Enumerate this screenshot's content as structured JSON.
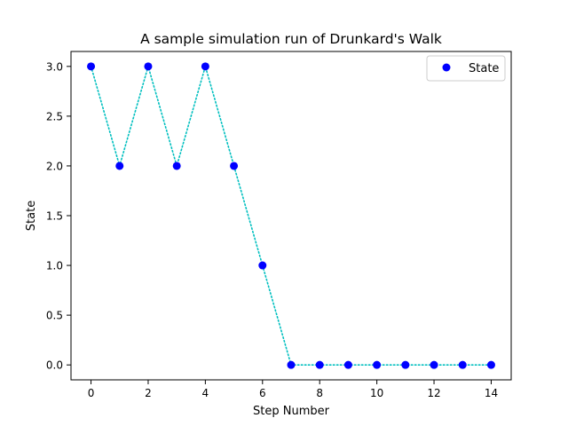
{
  "chart_data": {
    "type": "line",
    "title": "A sample simulation run of Drunkard's Walk",
    "xlabel": "Step Number",
    "ylabel": "State",
    "xlim": [
      -0.7,
      14.7
    ],
    "ylim": [
      -0.15,
      3.15
    ],
    "x_ticks": [
      0,
      2,
      4,
      6,
      8,
      10,
      12,
      14
    ],
    "y_ticks": [
      0.0,
      0.5,
      1.0,
      1.5,
      2.0,
      2.5,
      3.0
    ],
    "x_tick_labels": [
      "0",
      "2",
      "4",
      "6",
      "8",
      "10",
      "12",
      "14"
    ],
    "y_tick_labels": [
      "0.0",
      "0.5",
      "1.0",
      "1.5",
      "2.0",
      "2.5",
      "3.0"
    ],
    "grid": false,
    "legend_position": "top-right",
    "series": [
      {
        "name": "State",
        "marker_color": "#0000ff",
        "line_color": "#00bfbf",
        "line_style": "dotted",
        "x": [
          0,
          1,
          2,
          3,
          4,
          5,
          6,
          7,
          8,
          9,
          10,
          11,
          12,
          13,
          14
        ],
        "y": [
          3,
          2,
          3,
          2,
          3,
          2,
          1,
          0,
          0,
          0,
          0,
          0,
          0,
          0,
          0
        ]
      }
    ]
  }
}
